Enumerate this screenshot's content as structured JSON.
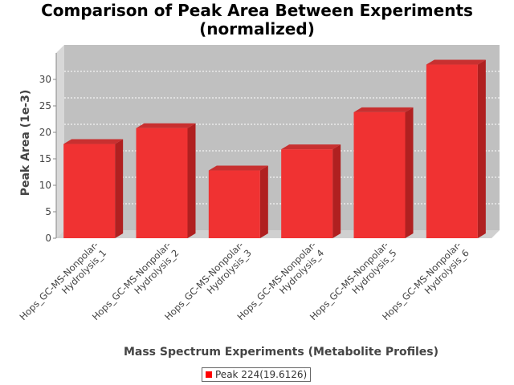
{
  "chart_data": {
    "type": "bar",
    "title": "Comparison of Peak Area Between Experiments\n(normalized)",
    "xlabel": "Mass Spectrum Experiments (Metabolite Profiles)",
    "ylabel": "Peak Area (1e-3)",
    "ylim": [
      0,
      35
    ],
    "yticks": [
      0,
      5,
      10,
      15,
      20,
      25,
      30
    ],
    "categories": [
      [
        "Hops_GC-MS-Nonpolar-",
        "Hydrolysis_1"
      ],
      [
        "Hops_GC-MS-Nonpolar-",
        "Hydrolysis_2"
      ],
      [
        "Hops_GC-MS-Nonpolar-",
        "Hydrolysis_3"
      ],
      [
        "Hops_GC-MS-Nonpolar-",
        "Hydrolysis_4"
      ],
      [
        "Hops_GC-MS-Nonpolar-",
        "Hydrolysis_5"
      ],
      [
        "Hops_GC-MS-Nonpolar-",
        "Hydrolysis_6"
      ]
    ],
    "series": [
      {
        "name": "Peak 224(19.6126)",
        "values": [
          17.8,
          20.8,
          12.8,
          16.8,
          23.8,
          32.8
        ],
        "color": "#ff0000"
      }
    ],
    "grid": true,
    "legend": "bottom",
    "background": "#c0c0c0"
  }
}
